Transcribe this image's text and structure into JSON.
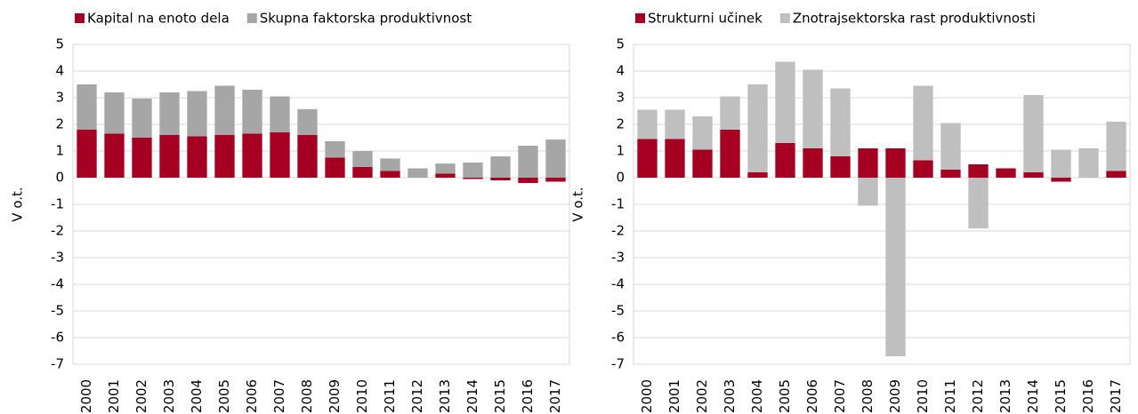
{
  "chart_data": [
    {
      "type": "stacked_bar",
      "y_label": "V o.t.",
      "categories": [
        "2000",
        "2001",
        "2002",
        "2003",
        "2004",
        "2005",
        "2006",
        "2007",
        "2008",
        "2009",
        "2010",
        "2011",
        "2012",
        "2013",
        "2014",
        "2015",
        "2016",
        "2017"
      ],
      "series": [
        {
          "name": "Kapital na enoto dela",
          "color": "#a50021",
          "values": [
            1.8,
            1.65,
            1.5,
            1.6,
            1.55,
            1.6,
            1.65,
            1.7,
            1.6,
            0.75,
            0.4,
            0.25,
            0.0,
            0.15,
            -0.05,
            -0.1,
            -0.2,
            -0.15
          ]
        },
        {
          "name": "Skupna faktorska produktivnost",
          "color": "#a6a6a6",
          "values": [
            1.7,
            1.55,
            1.47,
            1.6,
            1.7,
            1.85,
            1.65,
            1.35,
            0.97,
            0.62,
            0.6,
            0.47,
            0.35,
            0.38,
            0.57,
            0.8,
            1.2,
            1.43
          ]
        }
      ],
      "ylim": [
        -7,
        5
      ],
      "yticks": [
        -7,
        -6,
        -5,
        -4,
        -3,
        -2,
        -1,
        0,
        1,
        2,
        3,
        4,
        5
      ],
      "grid": true
    },
    {
      "type": "stacked_bar",
      "y_label": "V o.t.",
      "categories": [
        "2000",
        "2001",
        "2002",
        "2003",
        "2004",
        "2005",
        "2006",
        "2007",
        "2008",
        "2009",
        "2010",
        "2011",
        "2012",
        "2013",
        "2014",
        "2015",
        "2016",
        "2017"
      ],
      "series": [
        {
          "name": "Strukturni učinek",
          "color": "#a50021",
          "values": [
            1.45,
            1.45,
            1.05,
            1.8,
            0.2,
            1.3,
            1.1,
            0.8,
            1.1,
            1.1,
            0.65,
            0.3,
            0.5,
            0.35,
            0.2,
            -0.15,
            0.0,
            0.25
          ]
        },
        {
          "name": "Znotrajsektorska rast produktivnosti",
          "color": "#bfbfbf",
          "values": [
            1.1,
            1.1,
            1.25,
            1.25,
            3.3,
            3.05,
            2.95,
            2.55,
            -1.05,
            -6.7,
            2.8,
            1.75,
            -1.9,
            0,
            2.9,
            1.05,
            1.1,
            1.85
          ]
        }
      ],
      "ylim": [
        -7,
        5
      ],
      "yticks": [
        -7,
        -6,
        -5,
        -4,
        -3,
        -2,
        -1,
        0,
        1,
        2,
        3,
        4,
        5
      ],
      "grid": true
    }
  ]
}
